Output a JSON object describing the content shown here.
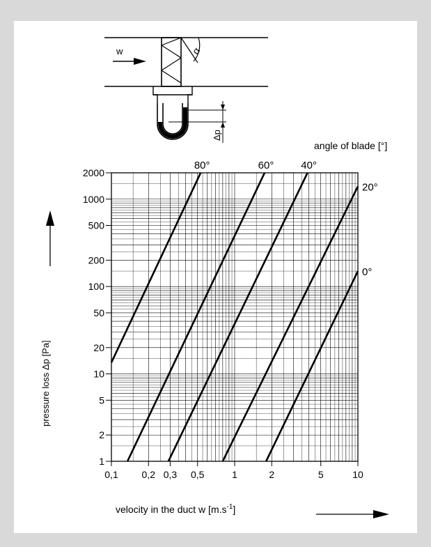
{
  "chart_data": {
    "type": "line",
    "title": "",
    "xlabel": "velocity in the duct  w  [m.s",
    "xlabel_sup": "-1",
    "xlabel_end": "]",
    "ylabel": "pressure loss Δp  [Pa]",
    "legend_title": "angle of blade  [°]",
    "x_scale": "log",
    "y_scale": "log",
    "xlim": [
      0.1,
      10
    ],
    "ylim": [
      1,
      2000
    ],
    "grid": true,
    "x_tick_labels": [
      "0,1",
      "0,2",
      "0,3",
      "0,5",
      "1",
      "2",
      "5",
      "10"
    ],
    "x_tick_values": [
      0.1,
      0.2,
      0.3,
      0.5,
      1,
      2,
      5,
      10
    ],
    "y_tick_labels": [
      "2000",
      "1000",
      "500",
      "200",
      "100",
      "50",
      "20",
      "10",
      "5",
      "2",
      "1"
    ],
    "y_tick_values": [
      2000,
      1000,
      500,
      200,
      100,
      50,
      20,
      10,
      5,
      2,
      1
    ],
    "series": [
      {
        "name": "80°",
        "points": [
          [
            0.1,
            13.5
          ],
          [
            0.53,
            2000
          ]
        ]
      },
      {
        "name": "60°",
        "points": [
          [
            0.135,
            1
          ],
          [
            1.75,
            2000
          ]
        ]
      },
      {
        "name": "40°",
        "points": [
          [
            0.29,
            1
          ],
          [
            3.9,
            2000
          ]
        ]
      },
      {
        "name": "20°",
        "points": [
          [
            0.8,
            1
          ],
          [
            10,
            1400
          ]
        ]
      },
      {
        "name": "0°",
        "points": [
          [
            1.8,
            1
          ],
          [
            10,
            150
          ]
        ]
      }
    ]
  },
  "diagram": {
    "velocity_symbol": "w",
    "angle_symbol": "α",
    "pressure_symbol": "Δp"
  }
}
